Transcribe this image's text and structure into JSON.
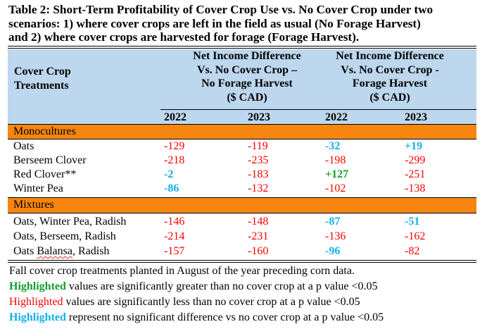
{
  "title": {
    "lines": [
      "Table 2: Short-Term Profitability of Cover Crop Use vs. No Cover Crop under two",
      "scenarios: 1) where cover crops are left in the field as usual (No Forage Harvest)",
      "and 2) where cover crops are harvested for forage (Forage Harvest)."
    ]
  },
  "header": {
    "treatments_lines": [
      "Cover Crop",
      "Treatments"
    ],
    "group1_lines": [
      "Net Income Difference",
      "Vs. No Cover Crop –",
      "No Forage Harvest",
      "($ CAD)"
    ],
    "group2_lines": [
      "Net Income Difference",
      "Vs. No Cover Crop -",
      "Forage Harvest",
      "($ CAD)"
    ],
    "years": [
      "2022",
      "2023",
      "2022",
      "2023"
    ]
  },
  "colors": {
    "header_bg": "#bdd7ee",
    "section_bg": "#f6860f",
    "significantly_greater": "#139d2a",
    "significantly_less": "#ff0000",
    "no_significant_difference": "#12b0e8"
  },
  "sections": [
    {
      "label": "Monocultures",
      "rows": [
        {
          "treatment": "Oats",
          "values": [
            {
              "v": "-129",
              "sig": "less"
            },
            {
              "v": "-119",
              "sig": "less"
            },
            {
              "v": "-32",
              "sig": "none"
            },
            {
              "v": "+19",
              "sig": "none"
            }
          ]
        },
        {
          "treatment": "Berseem Clover",
          "values": [
            {
              "v": "-218",
              "sig": "less"
            },
            {
              "v": "-235",
              "sig": "less"
            },
            {
              "v": "-198",
              "sig": "less"
            },
            {
              "v": "-299",
              "sig": "less"
            }
          ]
        },
        {
          "treatment": "Red Clover**",
          "values": [
            {
              "v": "-2",
              "sig": "none"
            },
            {
              "v": "-183",
              "sig": "less"
            },
            {
              "v": "+127",
              "sig": "greater"
            },
            {
              "v": "-251",
              "sig": "less"
            }
          ]
        },
        {
          "treatment": "Winter Pea",
          "values": [
            {
              "v": "-86",
              "sig": "none"
            },
            {
              "v": "-132",
              "sig": "less"
            },
            {
              "v": "-102",
              "sig": "less"
            },
            {
              "v": "-138",
              "sig": "less"
            }
          ]
        }
      ]
    },
    {
      "label": "Mixtures",
      "rows": [
        {
          "treatment": "Oats, Winter Pea, Radish",
          "values": [
            {
              "v": "-146",
              "sig": "less"
            },
            {
              "v": "-148",
              "sig": "less"
            },
            {
              "v": "-87",
              "sig": "none"
            },
            {
              "v": "-51",
              "sig": "none"
            }
          ]
        },
        {
          "treatment": "Oats, Berseem, Radish",
          "values": [
            {
              "v": "-214",
              "sig": "less"
            },
            {
              "v": "-231",
              "sig": "less"
            },
            {
              "v": "-136",
              "sig": "less"
            },
            {
              "v": "-162",
              "sig": "less"
            }
          ]
        },
        {
          "treatment_parts": [
            "Oats ",
            "Balansa",
            ", Radish"
          ],
          "values": [
            {
              "v": "-157",
              "sig": "less"
            },
            {
              "v": "-160",
              "sig": "less"
            },
            {
              "v": "-96",
              "sig": "none"
            },
            {
              "v": "-82",
              "sig": "less"
            }
          ]
        }
      ]
    }
  ],
  "footer": {
    "note": "Fall cover crop treatments planted in August of the year preceding corn data.",
    "legend": [
      {
        "keyword": "Highlighted",
        "text": " values are significantly greater than no cover crop at a p value <0.05"
      },
      {
        "keyword": "Highlighted",
        "text": " values are significantly less than no cover crop at a p value <0.05"
      },
      {
        "keyword": "Highlighted",
        "text": " represent no significant difference vs no cover crop at a p value <0.05"
      }
    ]
  }
}
